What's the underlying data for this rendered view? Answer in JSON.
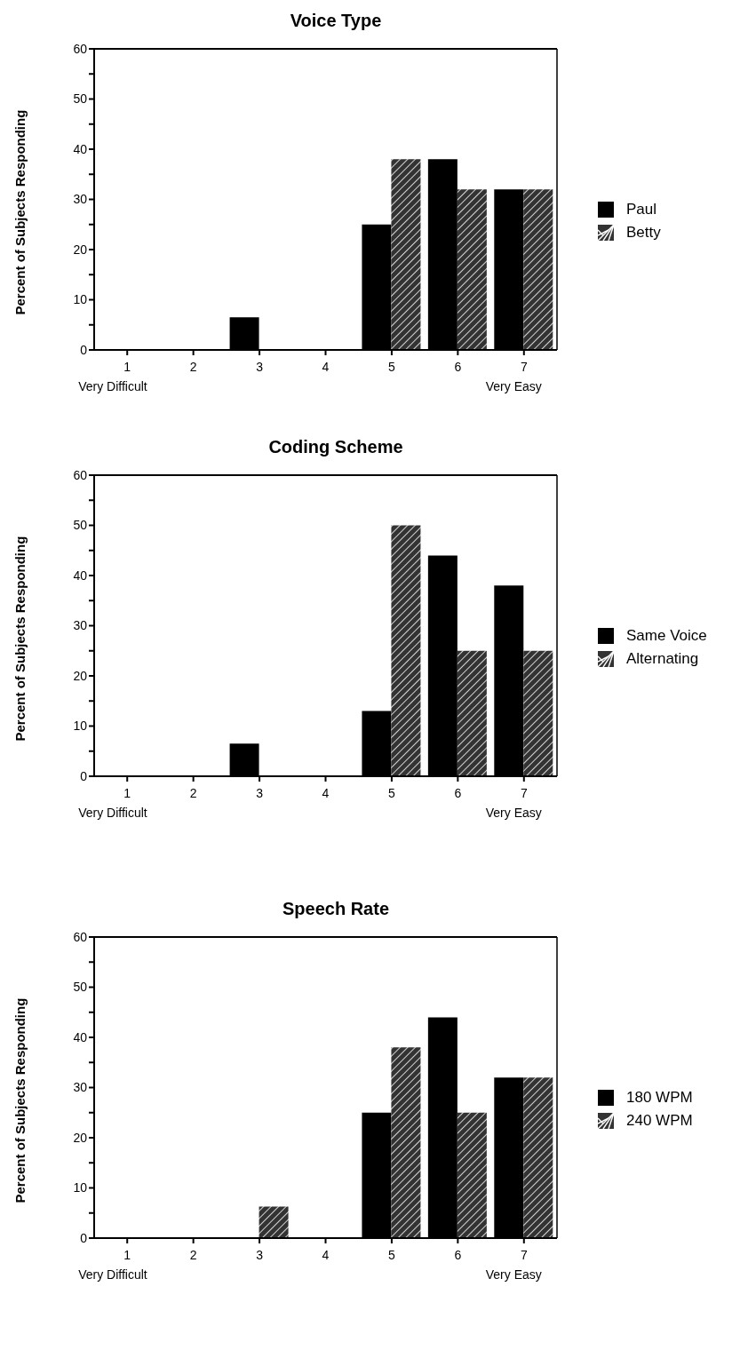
{
  "chart_data": [
    {
      "type": "bar",
      "title": "Voice Type",
      "ylabel": "Percent of Subjects Responding",
      "categories": [
        "1",
        "2",
        "3",
        "4",
        "5",
        "6",
        "7"
      ],
      "series": [
        {
          "name": "Paul",
          "color": "#000000",
          "values": [
            0,
            0,
            6.5,
            0,
            25,
            38,
            32
          ]
        },
        {
          "name": "Betty",
          "color": "#333333",
          "values": [
            0,
            0,
            0,
            0,
            38,
            32,
            32
          ]
        }
      ],
      "ylim": [
        0,
        60
      ],
      "yticks": [
        0,
        {
          "value": 5,
          "label": null
        },
        10,
        {
          "value": 15,
          "label": null
        },
        20,
        {
          "value": 25,
          "label": null
        },
        30,
        {
          "value": 35,
          "label": null
        },
        40,
        {
          "value": 45,
          "label": null
        },
        50,
        {
          "value": 55,
          "label": null
        },
        60
      ],
      "annotations": [
        "Very Difficult",
        "Very Easy"
      ],
      "legend": "right",
      "grid": false
    },
    {
      "type": "bar",
      "title": "Coding Scheme",
      "ylabel": "Percent of Subjects Responding",
      "categories": [
        "1",
        "2",
        "3",
        "4",
        "5",
        "6",
        "7"
      ],
      "series": [
        {
          "name": "Same Voice",
          "color": "#000000",
          "values": [
            0,
            0,
            6.5,
            0,
            13,
            44,
            38
          ]
        },
        {
          "name": "Alternating",
          "color": "#333333",
          "values": [
            0,
            0,
            0,
            0,
            50,
            25,
            25
          ]
        }
      ],
      "ylim": [
        0,
        60
      ],
      "yticks": [
        0,
        {
          "value": 5,
          "label": null
        },
        10,
        {
          "value": 15,
          "label": null
        },
        20,
        {
          "value": 25,
          "label": null
        },
        30,
        {
          "value": 35,
          "label": null
        },
        40,
        {
          "value": 45,
          "label": null
        },
        50,
        {
          "value": 55,
          "label": null
        },
        60
      ],
      "annotations": [
        "Very Difficult",
        "Very Easy"
      ],
      "legend": "right",
      "grid": false
    },
    {
      "type": "bar",
      "title": "Speech Rate",
      "ylabel": "Percent of Subjects Responding",
      "categories": [
        "1",
        "2",
        "3",
        "4",
        "5",
        "6",
        "7"
      ],
      "series": [
        {
          "name": "180 WPM",
          "color": "#000000",
          "values": [
            0,
            0,
            0,
            0,
            25,
            44,
            32
          ]
        },
        {
          "name": "240 WPM",
          "color": "#333333",
          "values": [
            0,
            0,
            6.3,
            0,
            38,
            25,
            32
          ]
        }
      ],
      "ylim": [
        0,
        60
      ],
      "yticks": [
        0,
        {
          "value": 5,
          "label": null
        },
        10,
        {
          "value": 15,
          "label": null
        },
        20,
        {
          "value": 25,
          "label": null
        },
        30,
        {
          "value": 35,
          "label": null
        },
        40,
        {
          "value": 45,
          "label": null
        },
        50,
        {
          "value": 55,
          "label": null
        },
        60
      ],
      "annotations": [
        "Very Difficult",
        "Very Easy"
      ],
      "legend": "right",
      "grid": false
    }
  ]
}
